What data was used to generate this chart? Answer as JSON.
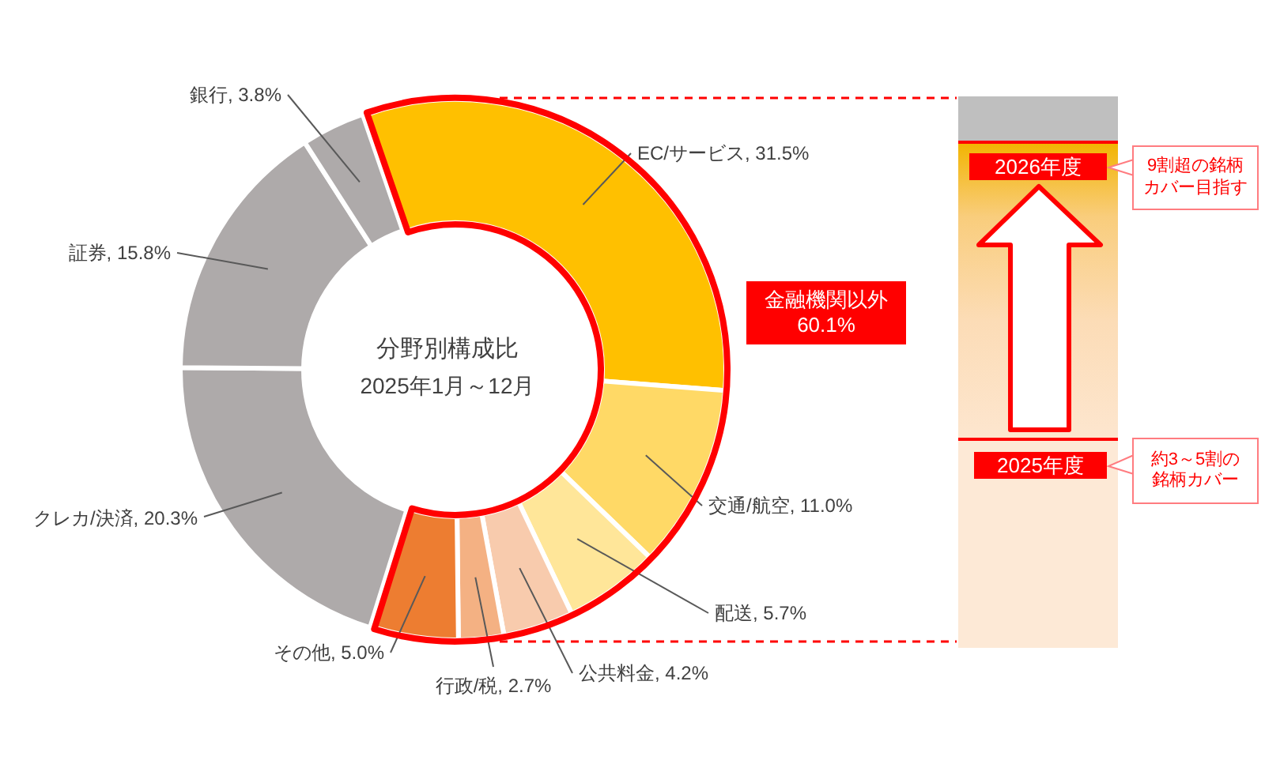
{
  "chart_data": {
    "type": "donut",
    "title": "分野別構成比",
    "subtitle": "2025年1月～12月",
    "categories": [
      "EC/サービス",
      "交通/航空",
      "配送",
      "公共料金",
      "行政/税",
      "その他",
      "クレカ/決済",
      "証券",
      "銀行"
    ],
    "values": [
      31.5,
      11.0,
      5.7,
      4.2,
      2.7,
      5.0,
      20.3,
      15.8,
      3.8
    ],
    "value_labels": [
      "31.5%",
      "11.0%",
      "5.7%",
      "4.2%",
      "2.7%",
      "5.0%",
      "20.3%",
      "15.8%",
      "3.8%"
    ],
    "colors": [
      "#ffc000",
      "#ffd966",
      "#ffe699",
      "#f8cbad",
      "#f4b183",
      "#ed7d31",
      "#aeaaaa",
      "#aeaaaa",
      "#aeaaaa"
    ],
    "annotations": [
      "金融機関以外 60.1%",
      "2026年度",
      "9割超の銘柄カバー目指す",
      "2025年度",
      "約3～5割の銘柄カバー"
    ]
  }
}
